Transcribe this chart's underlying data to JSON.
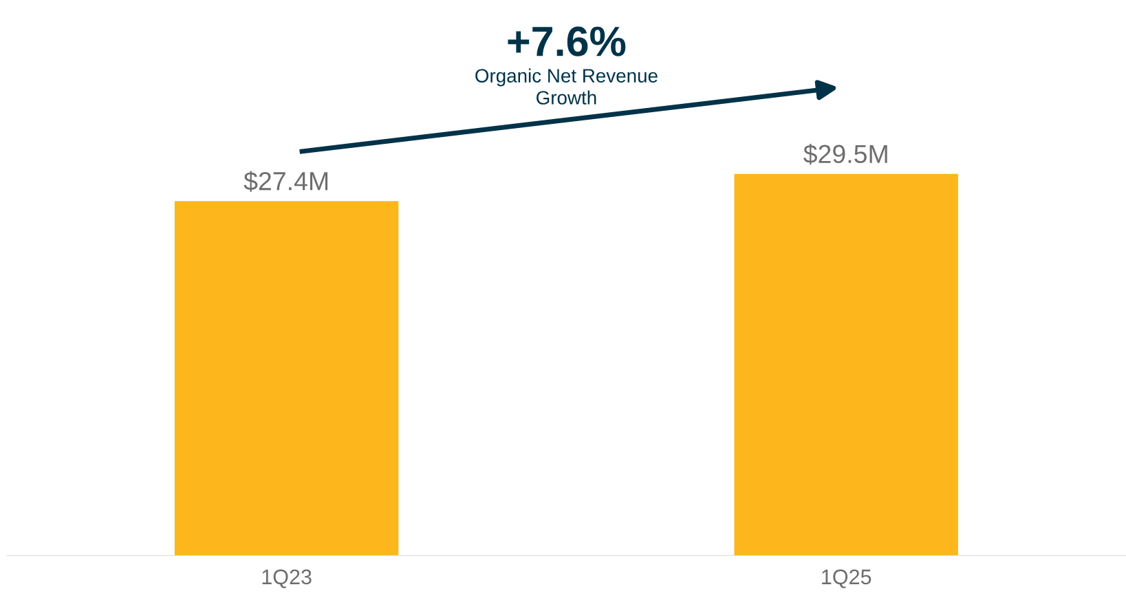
{
  "chart_data": {
    "type": "bar",
    "categories": [
      "1Q23",
      "1Q25"
    ],
    "values": [
      27.4,
      29.5
    ],
    "color": "#fdb71c",
    "value_labels": [
      "$27.4M",
      "$29.5M"
    ],
    "tick_labels": "x",
    "grid": false,
    "legend": false,
    "annotations": [
      "+7.6%",
      "Organic Net Revenue\nGrowth"
    ]
  }
}
